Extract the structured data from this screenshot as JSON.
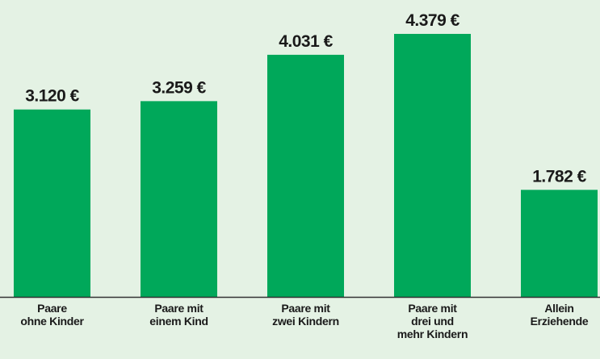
{
  "chart_data": {
    "type": "bar",
    "categories": [
      "Paare\nohne Kinder",
      "Paare mit\neinem Kind",
      "Paare mit\nzwei Kindern",
      "Paare mit\ndrei und\nmehr Kindern",
      "Allein\nErziehende"
    ],
    "values": [
      3120,
      3259,
      4031,
      4379,
      1782
    ],
    "value_labels": [
      "3.120 €",
      "3.259 €",
      "4.031 €",
      "4.379 €",
      "1.782 €"
    ],
    "color": "#00a85a"
  }
}
